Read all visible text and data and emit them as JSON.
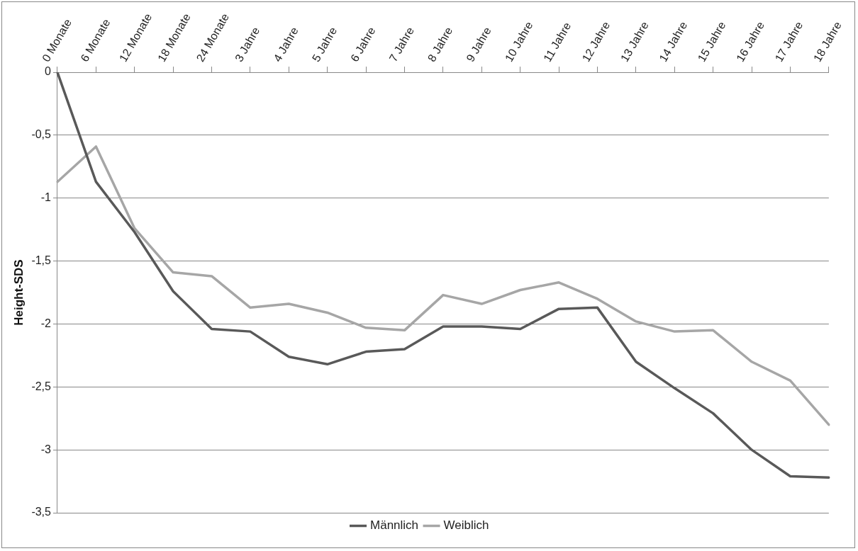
{
  "chart_data": {
    "type": "line",
    "ylabel": "Height-SDS",
    "categories": [
      "0 Monate",
      "6 Monate",
      "12 Monate",
      "18 Monate",
      "24 Monate",
      "3 Jahre",
      "4 Jahre",
      "5 Jahre",
      "6 Jahre",
      "7 Jahre",
      "8 Jahre",
      "9 Jahre",
      "10 Jahre",
      "11 Jahre",
      "12 Jahre",
      "13 Jahre",
      "14 Jahre",
      "15 Jahre",
      "16 Jahre",
      "17 Jahre",
      "18 Jahre"
    ],
    "series": [
      {
        "name": "Männlich",
        "color": "#595959",
        "values": [
          0,
          -0.87,
          -1.27,
          -1.74,
          -2.04,
          -2.06,
          -2.26,
          -2.32,
          -2.22,
          -2.2,
          -2.02,
          -2.02,
          -2.04,
          -1.88,
          -1.87,
          -2.3,
          -2.51,
          -2.71,
          -3.0,
          -3.21,
          -3.22
        ]
      },
      {
        "name": "Weiblich",
        "color": "#a6a6a6",
        "values": [
          -0.87,
          -0.59,
          -1.24,
          -1.59,
          -1.62,
          -1.87,
          -1.84,
          -1.91,
          -2.03,
          -2.05,
          -1.77,
          -1.84,
          -1.73,
          -1.67,
          -1.8,
          -1.98,
          -2.06,
          -2.05,
          -2.3,
          -2.45,
          -2.8
        ]
      }
    ],
    "ylim": [
      -3.5,
      0
    ],
    "yticks": [
      0,
      {
        "value": -0.5,
        "label": "-0,5"
      },
      -1,
      {
        "value": -1.5,
        "label": "-1,5"
      },
      -2,
      {
        "value": -2.5,
        "label": "-2,5"
      },
      -3,
      {
        "value": -3.5,
        "label": "-3,5"
      }
    ],
    "grid": "y",
    "legend": "bottom",
    "marker": "none",
    "line_style": "solid"
  }
}
